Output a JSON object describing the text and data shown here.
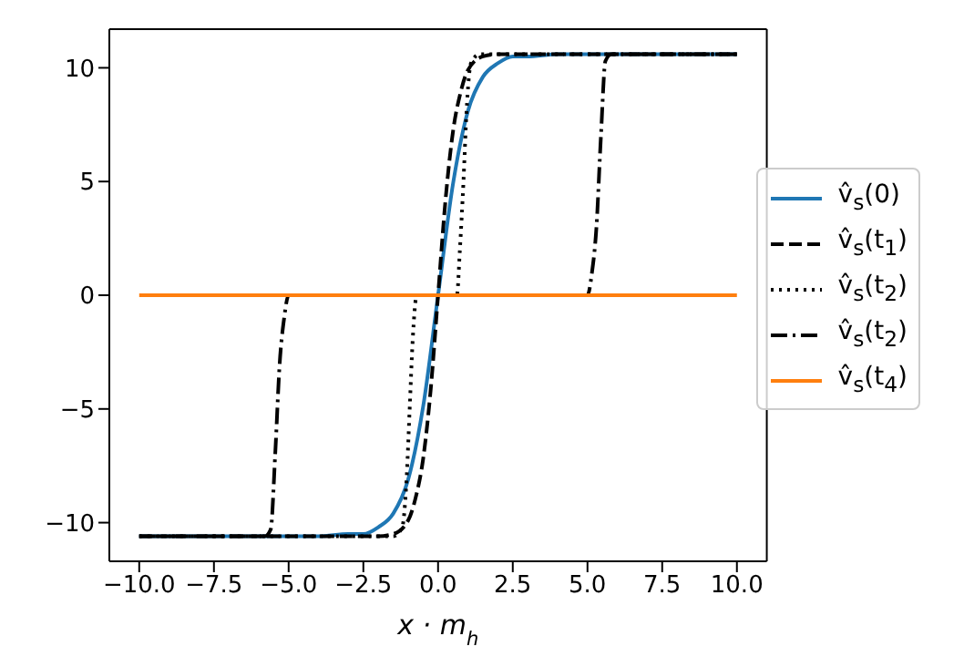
{
  "chart_data": {
    "type": "line",
    "xlabel": "x · m$_{h}$",
    "xlim": [
      -11,
      11
    ],
    "ylim": [
      -11.7,
      11.7
    ],
    "xticks": [
      {
        "value": -10,
        "label": "−10.0"
      },
      {
        "value": -7.5,
        "label": "−7.5"
      },
      {
        "value": -5,
        "label": "−5.0"
      },
      {
        "value": -2.5,
        "label": "−2.5"
      },
      {
        "value": 0,
        "label": "0.0"
      },
      {
        "value": 2.5,
        "label": "2.5"
      },
      {
        "value": 5,
        "label": "5.0"
      },
      {
        "value": 7.5,
        "label": "7.5"
      },
      {
        "value": 10,
        "label": "10.0"
      }
    ],
    "yticks": [
      {
        "value": -10,
        "label": "−10"
      },
      {
        "value": -5,
        "label": "−5"
      },
      0,
      5,
      10
    ],
    "grid": false,
    "legend": "right",
    "marker": "none",
    "series": [
      {
        "name": "v̂$_{s}$(0)",
        "color": "#1f77b4",
        "line_style": "solid",
        "x": [
          -10,
          -4,
          -3,
          -2.5,
          -2,
          -1.5,
          -1,
          -0.5,
          0,
          0.5,
          1,
          1.5,
          2,
          2.5,
          3,
          4,
          10
        ],
        "values": [
          -10.6,
          -10.6,
          -10.5,
          -10.5,
          -10.2,
          -9.6,
          -8.1,
          -4.9,
          0,
          4.9,
          8.1,
          9.6,
          10.2,
          10.5,
          10.5,
          10.6,
          10.6
        ]
      },
      {
        "name": "v̂$_{s}$(t$_{1}$)",
        "color": "#000000",
        "line_style": "dashed",
        "x": [
          -10,
          -2.5,
          -2,
          -1.5,
          -1,
          -0.75,
          -0.5,
          -0.25,
          0,
          0.25,
          0.5,
          0.75,
          1,
          1.5,
          2,
          2.5,
          10
        ],
        "values": [
          -10.6,
          -10.6,
          -10.6,
          -10.5,
          -9.9,
          -8.9,
          -7.2,
          -4.2,
          0,
          4.2,
          7.2,
          8.9,
          9.9,
          10.5,
          10.6,
          10.6,
          10.6
        ]
      },
      {
        "name": "v̂$_{s}$(t$_{2}$)",
        "color": "#000000",
        "line_style": "dotted",
        "x": [
          -10,
          -1.5,
          -1.2,
          -1.05,
          -0.95,
          -0.85,
          -0.71,
          0.63,
          0.73,
          0.85,
          0.95,
          1.1,
          1.4,
          10
        ],
        "values": [
          -10.6,
          -10.6,
          -10.2,
          -8,
          -5,
          -2,
          0,
          0,
          2,
          5,
          8,
          10.2,
          10.6,
          10.6
        ]
      },
      {
        "name": "v̂$_{s}$(t$_{2}$)",
        "color": "#000000",
        "line_style": "dashdot",
        "x": [
          -10,
          -5.8,
          -5.6,
          -5.45,
          -5.3,
          -5.15,
          -5,
          5,
          5.15,
          5.3,
          5.45,
          5.6,
          5.8,
          10
        ],
        "values": [
          -10.6,
          -10.6,
          -10.3,
          -7,
          -3,
          -1,
          0,
          0,
          1,
          3,
          7,
          10.3,
          10.6,
          10.6
        ]
      },
      {
        "name": "v̂$_{s}$(t$_{4}$)",
        "color": "#ff7f0e",
        "line_style": "solid",
        "x": [
          -10,
          10
        ],
        "values": [
          0,
          0
        ]
      }
    ]
  }
}
